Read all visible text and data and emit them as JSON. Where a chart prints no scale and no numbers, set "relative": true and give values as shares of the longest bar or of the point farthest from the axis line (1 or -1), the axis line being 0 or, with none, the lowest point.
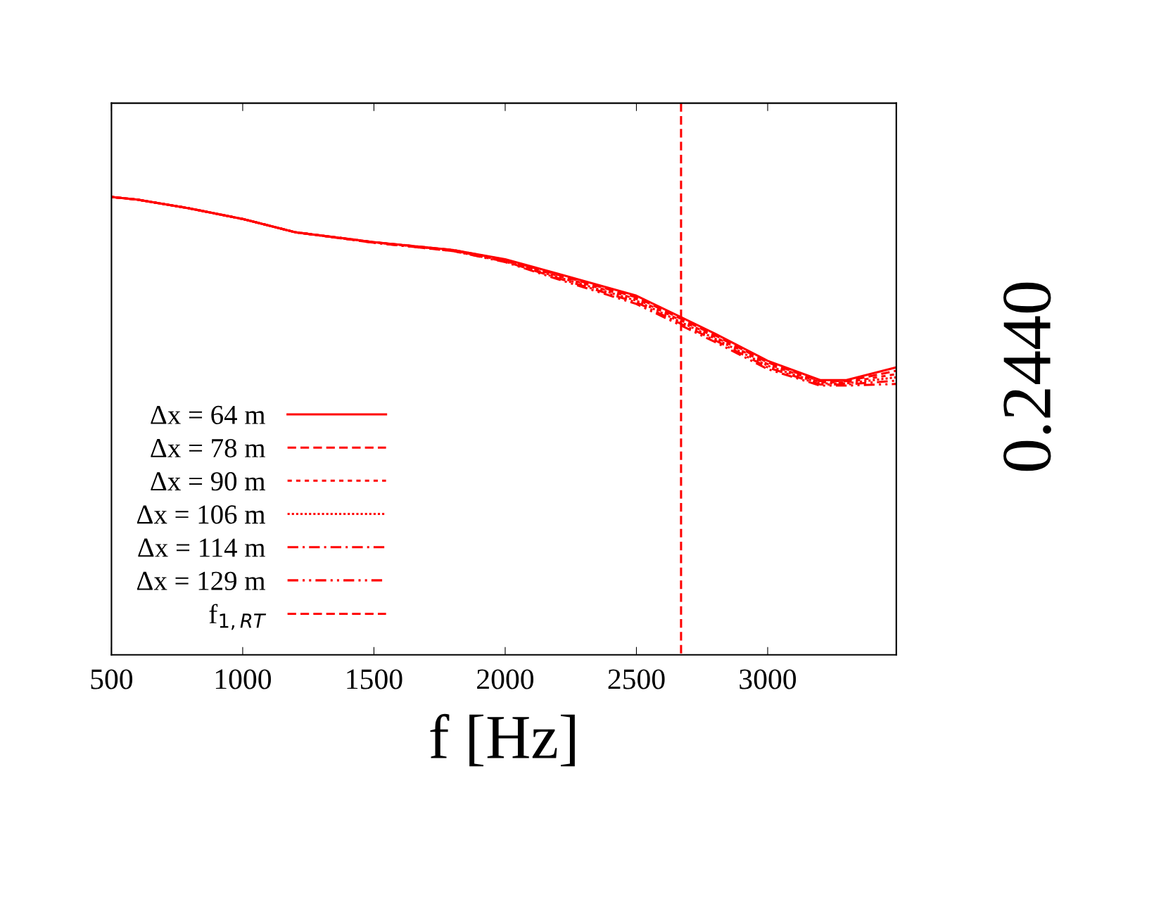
{
  "chart_data": {
    "type": "line",
    "relative": true,
    "xlabel": "f [Hz]",
    "xlim": [
      500,
      3490
    ],
    "xticks": [
      500,
      1000,
      1500,
      2000,
      2500,
      3000
    ],
    "grid": false,
    "legend": "bottom left",
    "marker": "none",
    "annotations": [
      "0.2440"
    ],
    "x": [
      500,
      600,
      800,
      1000,
      1200,
      1500,
      1800,
      2000,
      2200,
      2500,
      2670,
      2800,
      3000,
      3200,
      3300,
      3490
    ],
    "series": [
      {
        "name": "Δx = 64 m",
        "color": "#ff0000",
        "line_style": "solid",
        "values": [
          0.83,
          0.825,
          0.809,
          0.79,
          0.766,
          0.748,
          0.734,
          0.717,
          0.691,
          0.651,
          0.612,
          0.582,
          0.533,
          0.498,
          0.498,
          0.521
        ]
      },
      {
        "name": "Δx = 78 m",
        "color": "#ff0000",
        "line_style": "dashed",
        "values": [
          0.83,
          0.825,
          0.809,
          0.79,
          0.766,
          0.748,
          0.734,
          0.716,
          0.689,
          0.648,
          0.609,
          0.579,
          0.53,
          0.496,
          0.496,
          0.515
        ]
      },
      {
        "name": "Δx = 90 m",
        "color": "#ff0000",
        "line_style": "dotted",
        "values": [
          0.83,
          0.825,
          0.809,
          0.79,
          0.766,
          0.748,
          0.733,
          0.715,
          0.687,
          0.645,
          0.606,
          0.576,
          0.527,
          0.494,
          0.494,
          0.509
        ]
      },
      {
        "name": "Δx = 106 m",
        "color": "#ff0000",
        "line_style": "densely dotted",
        "values": [
          0.83,
          0.825,
          0.809,
          0.79,
          0.766,
          0.748,
          0.733,
          0.714,
          0.685,
          0.642,
          0.603,
          0.573,
          0.524,
          0.492,
          0.492,
          0.503
        ]
      },
      {
        "name": "Δx = 114 m",
        "color": "#ff0000",
        "line_style": "dashdot",
        "values": [
          0.83,
          0.825,
          0.809,
          0.79,
          0.766,
          0.747,
          0.732,
          0.713,
          0.683,
          0.639,
          0.6,
          0.57,
          0.521,
          0.49,
          0.49,
          0.497
        ]
      },
      {
        "name": "Δx = 129 m",
        "color": "#ff0000",
        "line_style": "dashdotdot",
        "values": [
          0.83,
          0.825,
          0.809,
          0.79,
          0.766,
          0.747,
          0.732,
          0.712,
          0.681,
          0.636,
          0.597,
          0.567,
          0.518,
          0.488,
          0.488,
          0.491
        ]
      },
      {
        "name": "f$_{1,RT}$",
        "color": "#ff0000",
        "line_style": "dashed",
        "x": [
          2670,
          2670
        ],
        "values": [
          1,
          0
        ]
      }
    ]
  }
}
